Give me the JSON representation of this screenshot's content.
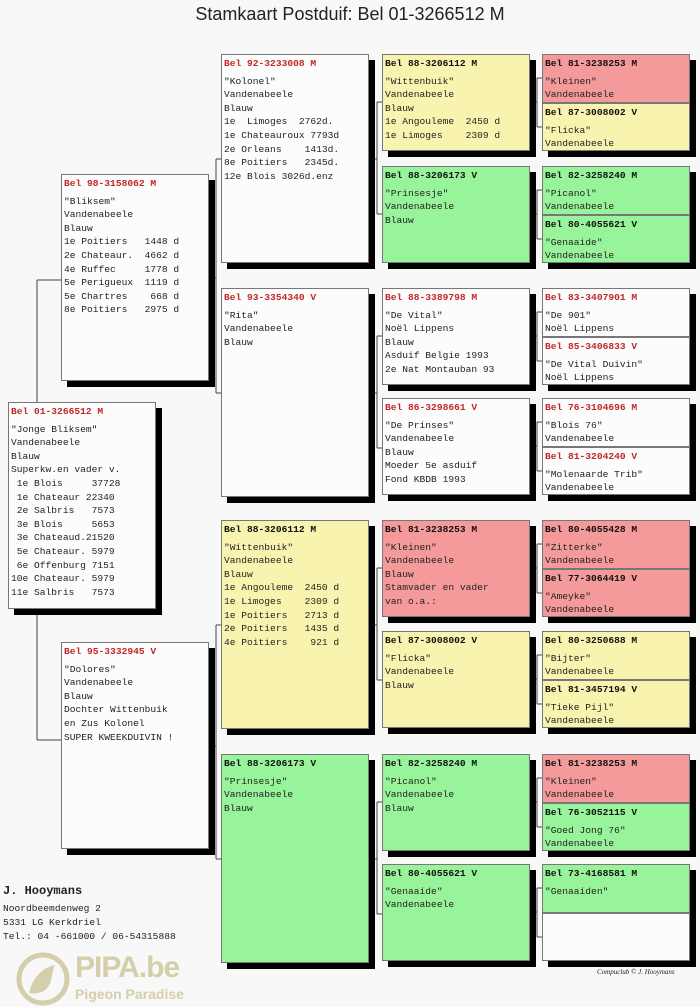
{
  "title": "Stamkaart Postduif: Bel 01-3266512 M",
  "colors": {
    "yellow": "#f8f4b0",
    "green": "#98f49a",
    "red": "#f49a9a",
    "white": "#fcfcfc",
    "ring_red": "#c02828"
  },
  "pedigree": {
    "subject": {
      "ring": "Bel 01-3266512 M",
      "color": "white",
      "lines": [
        "\"Jonge Bliksem\"",
        "Vandenabeele",
        "Blauw",
        "Superkw.en vader v.",
        " 1e Blois     37728",
        " 1e Chateaur 22340",
        " 2e Salbris   7573",
        " 3e Blois     5653",
        " 3e Chateaud.21520",
        " 5e Chateaur. 5979",
        " 6e Offenburg 7151",
        "10e Chateaur. 5979",
        "11e Salbris   7573"
      ]
    },
    "gen2": [
      {
        "ring": "Bel 98-3158062 M",
        "color": "white",
        "lines": [
          "\"Bliksem\"",
          "Vandenabeele",
          "Blauw",
          "1e Poitiers   1448 d",
          "2e Chateaur.  4662 d",
          "4e Ruffec     1778 d",
          "5e Perigueux  1119 d",
          "5e Chartres    668 d",
          "8e Poitiers   2975 d"
        ]
      },
      {
        "ring": "Bel 95-3332945 V",
        "color": "white",
        "lines": [
          "\"Dolores\"",
          "Vandenabeele",
          "Blauw",
          "Dochter Wittenbuik",
          "en Zus Kolonel",
          "SUPER KWEEKDUIVIN !"
        ]
      }
    ],
    "gen3": [
      {
        "ring": "Bel 92-3233008 M",
        "color": "white",
        "lines": [
          "\"Kolonel\"",
          "Vandenabeele",
          "Blauw",
          "1e  Limoges  2762d.",
          "1e Chateauroux 7793d",
          "2e Orleans    1413d.",
          "8e Poitiers   2345d.",
          "12e Blois 3026d.enz"
        ]
      },
      {
        "ring": "Bel 93-3354340 V",
        "color": "white",
        "lines": [
          "\"Rita\"",
          "Vandenabeele",
          "Blauw"
        ]
      },
      {
        "ring": "Bel 88-3206112 M",
        "color": "yellow",
        "lines": [
          "\"Wittenbuik\"",
          "Vandenabeele",
          "Blauw",
          "1e Angouleme  2450 d",
          "1e Limoges    2309 d",
          "1e Poitiers   2713 d",
          "2e Poitiers   1435 d",
          "4e Poitiers    921 d"
        ]
      },
      {
        "ring": "Bel 88-3206173 V",
        "color": "green",
        "lines": [
          "\"Prinsesje\"",
          "Vandenabeele",
          "Blauw"
        ]
      }
    ],
    "gen4": [
      {
        "ring": "Bel 88-3206112 M",
        "color": "yellow",
        "lines": [
          "\"Wittenbuik\"",
          "Vandenabeele",
          "Blauw",
          "1e Angouleme  2450 d",
          "1e Limoges    2309 d"
        ]
      },
      {
        "ring": "Bel 88-3206173 V",
        "color": "green",
        "lines": [
          "\"Prinsesje\"",
          "Vandenabeele",
          "Blauw"
        ]
      },
      {
        "ring": "Bel 88-3389798 M",
        "color": "white",
        "lines": [
          "\"De Vital\"",
          "Noël Lippens",
          "Blauw",
          "Asduif Belgie 1993",
          "2e Nat Montauban 93"
        ]
      },
      {
        "ring": "Bel 86-3298661 V",
        "color": "white",
        "lines": [
          "\"De Prinses\"",
          "Vandenabeele",
          "Blauw",
          "Moeder 5e asduif",
          "Fond KBDB 1993"
        ]
      },
      {
        "ring": "Bel 81-3238253 M",
        "color": "red",
        "lines": [
          "\"Kleinen\"",
          "Vandenabeele",
          "Blauw",
          "Stamvader en vader",
          "van o.a.:"
        ]
      },
      {
        "ring": "Bel 87-3008002 V",
        "color": "yellow",
        "lines": [
          "\"Flicka\"",
          "Vandenabeele",
          "Blauw"
        ]
      },
      {
        "ring": "Bel 82-3258240 M",
        "color": "green",
        "lines": [
          "\"Picanol\"",
          "Vandenabeele",
          "Blauw"
        ]
      },
      {
        "ring": "Bel 80-4055621 V",
        "color": "green",
        "lines": [
          "\"Genaaide\"",
          "Vandenabeele"
        ]
      }
    ],
    "gen5": [
      {
        "ring": "Bel 81-3238253 M",
        "color": "red",
        "lines": [
          "\"Kleinen\"",
          "Vandenabeele"
        ]
      },
      {
        "ring": "Bel 87-3008002 V",
        "color": "yellow",
        "lines": [
          "\"Flicka\"",
          "Vandenabeele"
        ]
      },
      {
        "ring": "Bel 82-3258240 M",
        "color": "green",
        "lines": [
          "\"Picanol\"",
          "Vandenabeele"
        ]
      },
      {
        "ring": "Bel 80-4055621 V",
        "color": "green",
        "lines": [
          "\"Genaaide\"",
          "Vandenabeele"
        ]
      },
      {
        "ring": "Bel 83-3407901 M",
        "color": "white",
        "lines": [
          "\"De 901\"",
          "Noël Lippens"
        ]
      },
      {
        "ring": "Bel 85-3406833 V",
        "color": "white",
        "lines": [
          "\"De Vital Duivin\"",
          "Noël Lippens"
        ]
      },
      {
        "ring": "Bel 76-3104696 M",
        "color": "white",
        "lines": [
          "\"Blois 76\"",
          "Vandenabeele"
        ]
      },
      {
        "ring": "Bel 81-3204240 V",
        "color": "white",
        "lines": [
          "\"Molenaarde Trib\"",
          "Vandenabeele"
        ]
      },
      {
        "ring": "Bel 80-4055428 M",
        "color": "red",
        "lines": [
          "\"Zitterke\"",
          "Vandenabeele"
        ]
      },
      {
        "ring": "Bel 77-3064419 V",
        "color": "red",
        "lines": [
          "\"Ameyke\"",
          "Vandenabeele"
        ]
      },
      {
        "ring": "Bel 80-3250688 M",
        "color": "yellow",
        "lines": [
          "\"Bijter\"",
          "Vandenabeele"
        ]
      },
      {
        "ring": "Bel 81-3457194 V",
        "color": "yellow",
        "lines": [
          "\"Tieke Pijl\"",
          "Vandenabeele"
        ]
      },
      {
        "ring": "Bel 81-3238253 M",
        "color": "red",
        "lines": [
          "\"Kleinen\"",
          "Vandenabeele"
        ]
      },
      {
        "ring": "Bel 76-3052115 V",
        "color": "green",
        "lines": [
          "\"Goed Jong 76\"",
          "Vandenabeele"
        ]
      },
      {
        "ring": "Bel 73-4168581 M",
        "color": "green",
        "lines": [
          "\"Genaaiden\""
        ]
      },
      {
        "ring": "",
        "color": "white",
        "lines": []
      }
    ]
  },
  "owner": {
    "name": "J. Hooymans",
    "address": "Noordbeemdenweg 2",
    "city": "5331 LG Kerkdriel",
    "phone": "Tel.: 04  -661000 / 06-54315888"
  },
  "credit": "Compuclub © J. Hooymans",
  "watermark": {
    "title": "PIPA.be",
    "subtitle": "Pigeon Paradise"
  }
}
